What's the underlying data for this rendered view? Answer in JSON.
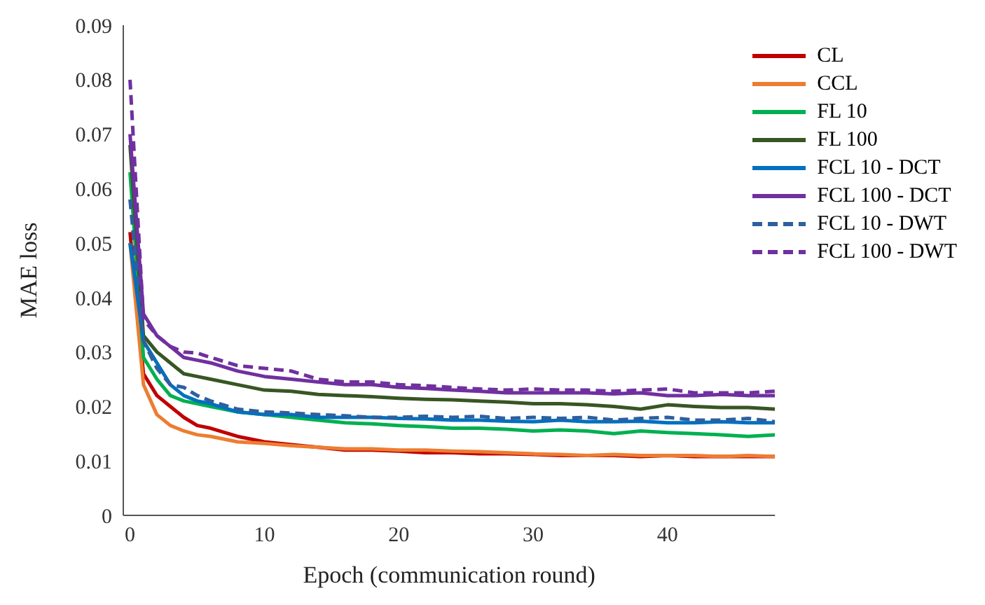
{
  "chart_data": {
    "type": "line",
    "xlabel": "Epoch (communication  round)",
    "ylabel": "MAE loss",
    "x": [
      0,
      1,
      2,
      3,
      4,
      5,
      6,
      8,
      10,
      12,
      14,
      16,
      18,
      20,
      22,
      24,
      26,
      28,
      30,
      32,
      34,
      36,
      38,
      40,
      42,
      44,
      46,
      48
    ],
    "xlim": [
      -0.5,
      48
    ],
    "xticks": [
      0,
      10,
      20,
      30,
      40
    ],
    "ylim": [
      0,
      0.09
    ],
    "yticks": [
      0,
      0.01,
      0.02,
      0.03,
      0.04,
      0.05,
      0.06,
      0.07,
      0.08,
      0.09
    ],
    "grid": false,
    "legend": "top right",
    "marker": "none",
    "series": [
      {
        "name": "CL",
        "color": "#c00000",
        "line_style": "solid",
        "values": [
          0.052,
          0.026,
          0.022,
          0.02,
          0.018,
          0.0165,
          0.016,
          0.0145,
          0.0135,
          0.013,
          0.0125,
          0.012,
          0.012,
          0.0118,
          0.0115,
          0.0115,
          0.0113,
          0.0113,
          0.0112,
          0.011,
          0.011,
          0.011,
          0.0108,
          0.011,
          0.0108,
          0.0108,
          0.0108,
          0.0108
        ]
      },
      {
        "name": "CCL",
        "color": "#ed7d31",
        "line_style": "solid",
        "values": [
          0.05,
          0.024,
          0.0185,
          0.0165,
          0.0155,
          0.0148,
          0.0145,
          0.0135,
          0.0132,
          0.0128,
          0.0125,
          0.0122,
          0.0122,
          0.012,
          0.012,
          0.0118,
          0.0117,
          0.0115,
          0.0113,
          0.0112,
          0.011,
          0.0112,
          0.011,
          0.011,
          0.011,
          0.0108,
          0.011,
          0.0108
        ]
      },
      {
        "name": "FL 10",
        "color": "#00b050",
        "line_style": "solid",
        "values": [
          0.063,
          0.029,
          0.025,
          0.022,
          0.021,
          0.0205,
          0.02,
          0.019,
          0.0185,
          0.018,
          0.0175,
          0.017,
          0.0168,
          0.0165,
          0.0163,
          0.016,
          0.016,
          0.0158,
          0.0155,
          0.0157,
          0.0155,
          0.015,
          0.0155,
          0.0152,
          0.015,
          0.0148,
          0.0145,
          0.0148
        ]
      },
      {
        "name": "FL 100",
        "color": "#375623",
        "line_style": "solid",
        "values": [
          0.068,
          0.033,
          0.03,
          0.028,
          0.026,
          0.0255,
          0.025,
          0.024,
          0.023,
          0.0228,
          0.0222,
          0.022,
          0.0218,
          0.0215,
          0.0213,
          0.0212,
          0.021,
          0.0208,
          0.0205,
          0.0205,
          0.0203,
          0.02,
          0.0195,
          0.0203,
          0.02,
          0.0198,
          0.0198,
          0.0195
        ]
      },
      {
        "name": "FCL 10 - DCT",
        "color": "#0070c0",
        "line_style": "solid",
        "values": [
          0.05,
          0.032,
          0.028,
          0.024,
          0.022,
          0.021,
          0.0205,
          0.019,
          0.0185,
          0.0185,
          0.018,
          0.018,
          0.018,
          0.0178,
          0.0177,
          0.0175,
          0.0175,
          0.0173,
          0.0172,
          0.0175,
          0.0172,
          0.0172,
          0.0173,
          0.017,
          0.017,
          0.0172,
          0.017,
          0.017
        ]
      },
      {
        "name": "FCL 100 - DCT",
        "color": "#7030a0",
        "line_style": "solid",
        "values": [
          0.07,
          0.037,
          0.033,
          0.031,
          0.029,
          0.0285,
          0.028,
          0.0265,
          0.0255,
          0.025,
          0.0245,
          0.024,
          0.024,
          0.0235,
          0.0233,
          0.023,
          0.0228,
          0.0225,
          0.0225,
          0.0225,
          0.0225,
          0.0223,
          0.0225,
          0.022,
          0.022,
          0.0222,
          0.022,
          0.022
        ]
      },
      {
        "name": "FCL 10 - DWT",
        "color": "#2e5f9e",
        "line_style": "dashed",
        "values": [
          0.058,
          0.032,
          0.027,
          0.024,
          0.0235,
          0.022,
          0.021,
          0.0195,
          0.019,
          0.0188,
          0.0185,
          0.0183,
          0.018,
          0.018,
          0.0182,
          0.018,
          0.0182,
          0.0178,
          0.018,
          0.0178,
          0.018,
          0.0175,
          0.0178,
          0.018,
          0.0175,
          0.0175,
          0.0178,
          0.0172
        ]
      },
      {
        "name": "FCL 100 - DWT",
        "color": "#7030a0",
        "line_style": "dashed",
        "values": [
          0.08,
          0.036,
          0.033,
          0.031,
          0.03,
          0.0298,
          0.029,
          0.0275,
          0.027,
          0.0265,
          0.025,
          0.0245,
          0.0245,
          0.024,
          0.0238,
          0.0235,
          0.0232,
          0.023,
          0.0232,
          0.023,
          0.023,
          0.0228,
          0.023,
          0.0232,
          0.0225,
          0.0225,
          0.0225,
          0.0228
        ]
      }
    ]
  }
}
